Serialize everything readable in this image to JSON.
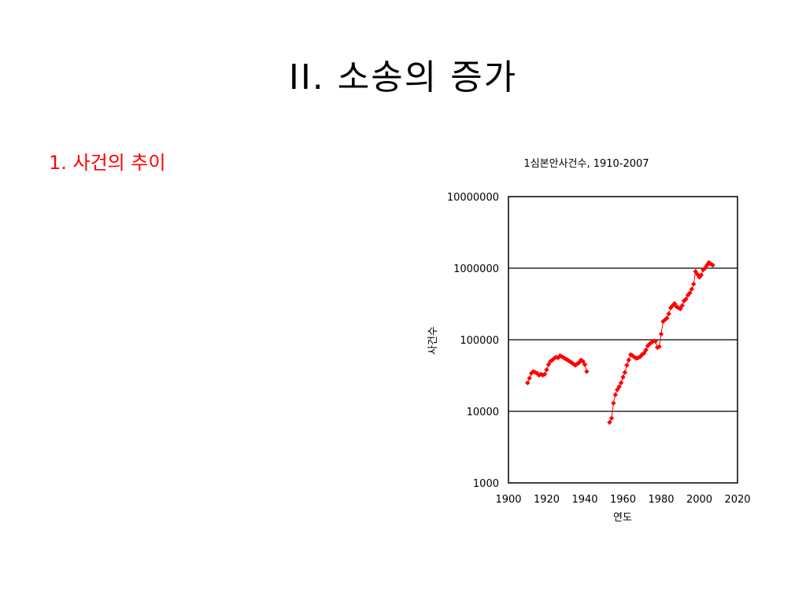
{
  "slide": {
    "title": "II. 소송의 증가",
    "bullet": "1.  사건의 추이"
  },
  "colors": {
    "series": "#ff0000",
    "bullet": "#ff0000",
    "text": "#000000"
  },
  "chart_data": {
    "type": "line",
    "title": "1심본안사건수, 1910-2007",
    "xlabel": "연도",
    "ylabel": "사건수",
    "xlim": [
      1900,
      2020
    ],
    "ylim": [
      1000,
      10000000
    ],
    "yscale": "log",
    "grid": "horizontal",
    "x_ticks": [
      "1900",
      "1920",
      "1940",
      "1960",
      "1980",
      "2000",
      "2020"
    ],
    "y_ticks": [
      "1000",
      "10000",
      "100000",
      "1000000",
      "10000000"
    ],
    "marker": "diamond",
    "series": [
      {
        "x": [
          1910,
          1911,
          1912,
          1913,
          1914,
          1915,
          1916,
          1917,
          1918,
          1919,
          1920,
          1921,
          1922,
          1923,
          1924,
          1925,
          1926,
          1927,
          1928,
          1929,
          1930,
          1931,
          1932,
          1933,
          1934,
          1935,
          1936,
          1937,
          1938,
          1939,
          1940,
          1941
        ],
        "y": [
          25000,
          29000,
          34000,
          36000,
          35000,
          34000,
          32000,
          33000,
          32000,
          33000,
          38000,
          45000,
          50000,
          52000,
          55000,
          57000,
          56000,
          60000,
          58000,
          56000,
          54000,
          52000,
          50000,
          48000,
          46000,
          44000,
          46000,
          48000,
          52000,
          50000,
          45000,
          36000
        ]
      },
      {
        "x": [
          1953,
          1954,
          1955,
          1956,
          1957,
          1958,
          1959,
          1960,
          1961,
          1962,
          1963,
          1964,
          1965,
          1966,
          1967,
          1968,
          1969,
          1970,
          1971,
          1972,
          1973,
          1974,
          1975,
          1976,
          1977,
          1978,
          1979,
          1980,
          1981,
          1982,
          1983,
          1984,
          1985,
          1986,
          1987,
          1988,
          1989,
          1990,
          1991,
          1992,
          1993,
          1994,
          1995,
          1996,
          1997,
          1998,
          1999,
          2000,
          2001,
          2002,
          2003,
          2004,
          2005,
          2006,
          2007
        ],
        "y": [
          7000,
          8000,
          13000,
          17000,
          20000,
          22000,
          25000,
          30000,
          35000,
          44000,
          52000,
          62000,
          60000,
          57000,
          55000,
          56000,
          58000,
          62000,
          65000,
          72000,
          82000,
          88000,
          92000,
          96000,
          95000,
          78000,
          80000,
          120000,
          180000,
          190000,
          200000,
          230000,
          280000,
          300000,
          320000,
          290000,
          280000,
          270000,
          300000,
          350000,
          370000,
          420000,
          450000,
          510000,
          600000,
          900000,
          820000,
          750000,
          800000,
          950000,
          1000000,
          1100000,
          1200000,
          1150000,
          1100000
        ]
      }
    ]
  }
}
